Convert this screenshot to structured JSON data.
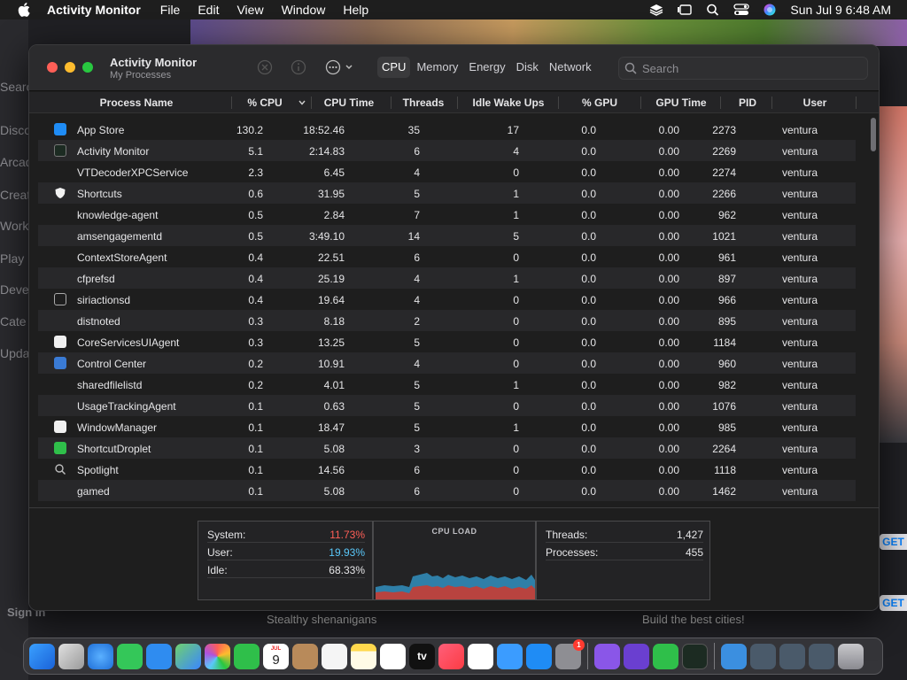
{
  "menubar": {
    "app_name": "Activity Monitor",
    "menus": [
      "File",
      "Edit",
      "View",
      "Window",
      "Help"
    ],
    "clock": "Sun Jul 9  6:48 AM"
  },
  "background": {
    "sidebar_items": [
      "Searc",
      "Disco",
      "Arcad",
      "Creat",
      "Work",
      "Play",
      "Deve",
      "Cate",
      "Upda"
    ],
    "sign_in": "Sign in",
    "bottom_caption_1": "Stealthy shenanigans",
    "bottom_caption_2": "Build the best cities!",
    "get_label": "GET"
  },
  "window": {
    "title": "Activity Monitor",
    "subtitle": "My Processes",
    "tabs": [
      "CPU",
      "Memory",
      "Energy",
      "Disk",
      "Network"
    ],
    "active_tab": "CPU",
    "search_placeholder": "Search"
  },
  "table": {
    "columns": [
      "Process Name",
      "% CPU",
      "CPU Time",
      "Threads",
      "Idle Wake Ups",
      "% GPU",
      "GPU Time",
      "PID",
      "User"
    ],
    "rows": [
      {
        "name": "App Store",
        "icon": "app-store-icon",
        "cpu": "130.2",
        "time": "18:52.46",
        "threads": "35",
        "wake": "17",
        "gpu": "0.0",
        "gtime": "0.00",
        "pid": "2273",
        "user": "ventura"
      },
      {
        "name": "Activity Monitor",
        "icon": "activity-monitor-icon",
        "cpu": "5.1",
        "time": "2:14.83",
        "threads": "6",
        "wake": "4",
        "gpu": "0.0",
        "gtime": "0.00",
        "pid": "2269",
        "user": "ventura"
      },
      {
        "name": "VTDecoderXPCService",
        "icon": "",
        "cpu": "2.3",
        "time": "6.45",
        "threads": "4",
        "wake": "0",
        "gpu": "0.0",
        "gtime": "0.00",
        "pid": "2274",
        "user": "ventura"
      },
      {
        "name": "Shortcuts",
        "icon": "shield-icon",
        "cpu": "0.6",
        "time": "31.95",
        "threads": "5",
        "wake": "1",
        "gpu": "0.0",
        "gtime": "0.00",
        "pid": "2266",
        "user": "ventura"
      },
      {
        "name": "knowledge-agent",
        "icon": "",
        "cpu": "0.5",
        "time": "2.84",
        "threads": "7",
        "wake": "1",
        "gpu": "0.0",
        "gtime": "0.00",
        "pid": "962",
        "user": "ventura"
      },
      {
        "name": "amsengagementd",
        "icon": "",
        "cpu": "0.5",
        "time": "3:49.10",
        "threads": "14",
        "wake": "5",
        "gpu": "0.0",
        "gtime": "0.00",
        "pid": "1021",
        "user": "ventura"
      },
      {
        "name": "ContextStoreAgent",
        "icon": "",
        "cpu": "0.4",
        "time": "22.51",
        "threads": "6",
        "wake": "0",
        "gpu": "0.0",
        "gtime": "0.00",
        "pid": "961",
        "user": "ventura"
      },
      {
        "name": "cfprefsd",
        "icon": "",
        "cpu": "0.4",
        "time": "25.19",
        "threads": "4",
        "wake": "1",
        "gpu": "0.0",
        "gtime": "0.00",
        "pid": "897",
        "user": "ventura"
      },
      {
        "name": "siriactionsd",
        "icon": "window-icon",
        "cpu": "0.4",
        "time": "19.64",
        "threads": "4",
        "wake": "0",
        "gpu": "0.0",
        "gtime": "0.00",
        "pid": "966",
        "user": "ventura"
      },
      {
        "name": "distnoted",
        "icon": "",
        "cpu": "0.3",
        "time": "8.18",
        "threads": "2",
        "wake": "0",
        "gpu": "0.0",
        "gtime": "0.00",
        "pid": "895",
        "user": "ventura"
      },
      {
        "name": "CoreServicesUIAgent",
        "icon": "white-square-icon",
        "cpu": "0.3",
        "time": "13.25",
        "threads": "5",
        "wake": "0",
        "gpu": "0.0",
        "gtime": "0.00",
        "pid": "1184",
        "user": "ventura"
      },
      {
        "name": "Control Center",
        "icon": "control-center-icon",
        "cpu": "0.2",
        "time": "10.91",
        "threads": "4",
        "wake": "0",
        "gpu": "0.0",
        "gtime": "0.00",
        "pid": "960",
        "user": "ventura"
      },
      {
        "name": "sharedfilelistd",
        "icon": "",
        "cpu": "0.2",
        "time": "4.01",
        "threads": "5",
        "wake": "1",
        "gpu": "0.0",
        "gtime": "0.00",
        "pid": "982",
        "user": "ventura"
      },
      {
        "name": "UsageTrackingAgent",
        "icon": "",
        "cpu": "0.1",
        "time": "0.63",
        "threads": "5",
        "wake": "0",
        "gpu": "0.0",
        "gtime": "0.00",
        "pid": "1076",
        "user": "ventura"
      },
      {
        "name": "WindowManager",
        "icon": "white-square-icon",
        "cpu": "0.1",
        "time": "18.47",
        "threads": "5",
        "wake": "1",
        "gpu": "0.0",
        "gtime": "0.00",
        "pid": "985",
        "user": "ventura"
      },
      {
        "name": "ShortcutDroplet",
        "icon": "droplet-icon",
        "cpu": "0.1",
        "time": "5.08",
        "threads": "3",
        "wake": "0",
        "gpu": "0.0",
        "gtime": "0.00",
        "pid": "2264",
        "user": "ventura"
      },
      {
        "name": "Spotlight",
        "icon": "search-icon",
        "cpu": "0.1",
        "time": "14.56",
        "threads": "6",
        "wake": "0",
        "gpu": "0.0",
        "gtime": "0.00",
        "pid": "1118",
        "user": "ventura"
      },
      {
        "name": "gamed",
        "icon": "",
        "cpu": "0.1",
        "time": "5.08",
        "threads": "6",
        "wake": "0",
        "gpu": "0.0",
        "gtime": "0.00",
        "pid": "1462",
        "user": "ventura"
      }
    ]
  },
  "stats": {
    "system_label": "System:",
    "system_value": "11.73%",
    "user_label": "User:",
    "user_value": "19.93%",
    "idle_label": "Idle:",
    "idle_value": "68.33%",
    "cpu_load_title": "CPU LOAD",
    "threads_label": "Threads:",
    "threads_value": "1,427",
    "processes_label": "Processes:",
    "processes_value": "455"
  },
  "colors": {
    "system": "#ff5f57",
    "user": "#5ac8fa",
    "chart_user": "#2f7fa8",
    "chart_system": "#b8433f"
  },
  "dock": {
    "calendar_month": "JUL",
    "calendar_day": "9",
    "appletv_label": "tv",
    "settings_badge": "1"
  }
}
